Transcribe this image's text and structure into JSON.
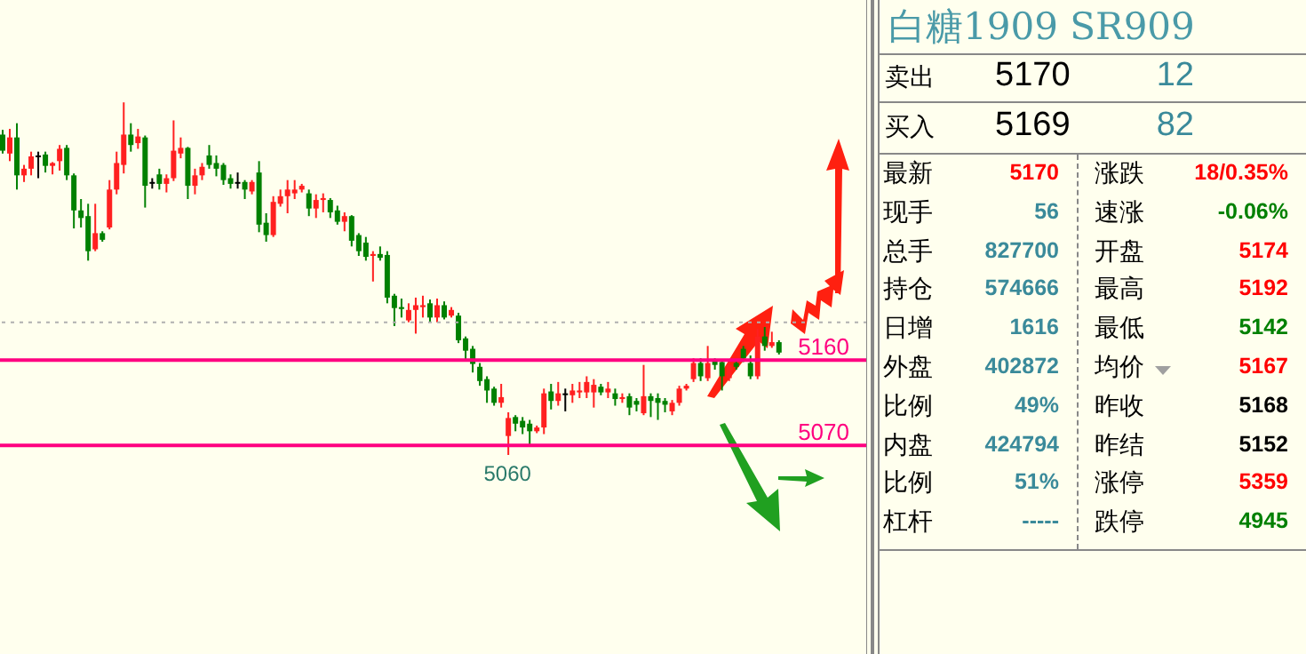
{
  "chart_data": [
    {
      "type": "candlestick",
      "categories": [
        null,
        null,
        null,
        null,
        null,
        null,
        null,
        null,
        null,
        null,
        null,
        null,
        null,
        null,
        null,
        null,
        null,
        null,
        null,
        null,
        null,
        null,
        null,
        null,
        null,
        null,
        null,
        null,
        null,
        null,
        null,
        null,
        null,
        null,
        null,
        null,
        null,
        null,
        null,
        null,
        null,
        null,
        null,
        null,
        null,
        null,
        null,
        null,
        null,
        null,
        null,
        null,
        null,
        null,
        null,
        null,
        null,
        null,
        null,
        null,
        null,
        null,
        null,
        null,
        null,
        null,
        null,
        null,
        null,
        null,
        null,
        null,
        null,
        null,
        null,
        null,
        null,
        null,
        null,
        null,
        null,
        null,
        null,
        null,
        null,
        null,
        null,
        null,
        null,
        null,
        null,
        null,
        null,
        null,
        null,
        null,
        null,
        null,
        null,
        null,
        null,
        null,
        null,
        null,
        null,
        null,
        null,
        null,
        null,
        null
      ],
      "ohlc": [
        [
          5398,
          5403,
          5378,
          5381
        ],
        [
          5378,
          5404,
          5370,
          5395
        ],
        [
          5395,
          5410,
          5340,
          5355
        ],
        [
          5355,
          5366,
          5348,
          5362
        ],
        [
          5362,
          5380,
          5355,
          5375
        ],
        [
          5376,
          5380,
          5352,
          5376
        ],
        [
          5377,
          5380,
          5358,
          5365
        ],
        [
          5365,
          5369,
          5356,
          5368
        ],
        [
          5370,
          5387,
          5360,
          5383
        ],
        [
          5384,
          5387,
          5350,
          5355
        ],
        [
          5355,
          5357,
          5299,
          5318
        ],
        [
          5318,
          5330,
          5300,
          5310
        ],
        [
          5312,
          5325,
          5265,
          5275
        ],
        [
          5277,
          5325,
          5275,
          5294
        ],
        [
          5294,
          5296,
          5285,
          5287
        ],
        [
          5300,
          5350,
          5298,
          5340
        ],
        [
          5340,
          5380,
          5335,
          5368
        ],
        [
          5366,
          5432,
          5357,
          5398
        ],
        [
          5398,
          5410,
          5380,
          5387
        ],
        [
          5389,
          5404,
          5383,
          5396
        ],
        [
          5395,
          5397,
          5321,
          5344
        ],
        [
          5348,
          5352,
          5341,
          5348
        ],
        [
          5356,
          5362,
          5340,
          5346
        ],
        [
          5346,
          5356,
          5337,
          5352
        ],
        [
          5352,
          5413,
          5349,
          5381
        ],
        [
          5378,
          5395,
          5373,
          5384
        ],
        [
          5384,
          5385,
          5330,
          5344
        ],
        [
          5344,
          5362,
          5335,
          5355
        ],
        [
          5355,
          5368,
          5350,
          5364
        ],
        [
          5376,
          5387,
          5362,
          5366
        ],
        [
          5368,
          5376,
          5354,
          5362
        ],
        [
          5366,
          5368,
          5345,
          5350
        ],
        [
          5352,
          5356,
          5341,
          5346
        ],
        [
          5348,
          5358,
          5341,
          5348
        ],
        [
          5348,
          5350,
          5330,
          5340
        ],
        [
          5338,
          5350,
          5335,
          5348
        ],
        [
          5358,
          5370,
          5295,
          5303
        ],
        [
          5305,
          5315,
          5285,
          5292
        ],
        [
          5292,
          5333,
          5290,
          5327
        ],
        [
          5325,
          5340,
          5322,
          5333
        ],
        [
          5333,
          5350,
          5315,
          5340
        ],
        [
          5336,
          5350,
          5330,
          5340
        ],
        [
          5340,
          5346,
          5337,
          5344
        ],
        [
          5336,
          5340,
          5312,
          5320
        ],
        [
          5320,
          5335,
          5310,
          5329
        ],
        [
          5329,
          5336,
          5316,
          5331
        ],
        [
          5329,
          5331,
          5310,
          5316
        ],
        [
          5318,
          5323,
          5303,
          5306
        ],
        [
          5306,
          5316,
          5296,
          5312
        ],
        [
          5312,
          5313,
          5280,
          5286
        ],
        [
          5292,
          5294,
          5270,
          5275
        ],
        [
          5284,
          5290,
          5265,
          5269
        ],
        [
          5270,
          5275,
          5243,
          5272
        ],
        [
          5272,
          5280,
          5265,
          5268
        ],
        [
          5271,
          5275,
          5220,
          5226
        ],
        [
          5228,
          5230,
          5196,
          5215
        ],
        [
          5216,
          5225,
          5205,
          5214
        ],
        [
          5202,
          5220,
          5200,
          5213
        ],
        [
          5213,
          5226,
          5188,
          5218
        ],
        [
          5216,
          5228,
          5205,
          5218
        ],
        [
          5220,
          5224,
          5200,
          5205
        ],
        [
          5205,
          5225,
          5200,
          5218
        ],
        [
          5218,
          5222,
          5203,
          5205
        ],
        [
          5207,
          5216,
          5205,
          5213
        ],
        [
          5207,
          5210,
          5178,
          5181
        ],
        [
          5183,
          5185,
          5160,
          5170
        ],
        [
          5172,
          5175,
          5147,
          5156
        ],
        [
          5153,
          5157,
          5133,
          5138
        ],
        [
          5140,
          5143,
          5115,
          5128
        ],
        [
          5130,
          5132,
          5112,
          5115
        ],
        [
          5115,
          5135,
          5110,
          5121
        ],
        [
          5080,
          5105,
          5060,
          5099
        ],
        [
          5100,
          5102,
          5085,
          5093
        ],
        [
          5096,
          5100,
          5082,
          5089
        ],
        [
          5093,
          5097,
          5070,
          5085
        ],
        [
          5085,
          5091,
          5083,
          5089
        ],
        [
          5089,
          5130,
          5082,
          5125
        ],
        [
          5127,
          5135,
          5108,
          5117
        ],
        [
          5117,
          5137,
          5112,
          5125
        ],
        [
          5125,
          5130,
          5106,
          5125
        ],
        [
          5123,
          5135,
          5115,
          5128
        ],
        [
          5126,
          5137,
          5120,
          5128
        ],
        [
          5126,
          5143,
          5120,
          5137
        ],
        [
          5126,
          5140,
          5110,
          5134
        ],
        [
          5132,
          5135,
          5123,
          5126
        ],
        [
          5126,
          5137,
          5120,
          5130
        ],
        [
          5125,
          5130,
          5112,
          5119
        ],
        [
          5119,
          5125,
          5115,
          5121
        ],
        [
          5122,
          5125,
          5102,
          5110
        ],
        [
          5117,
          5120,
          5106,
          5113
        ],
        [
          5104,
          5155,
          5102,
          5122
        ],
        [
          5122,
          5125,
          5100,
          5117
        ],
        [
          5120,
          5125,
          5097,
          5115
        ],
        [
          5117,
          5120,
          5105,
          5113
        ],
        [
          5106,
          5118,
          5102,
          5115
        ],
        [
          5115,
          5133,
          5112,
          5130
        ],
        [
          5130,
          5135,
          5128,
          5133
        ],
        [
          5140,
          5162,
          5137,
          5157
        ],
        [
          5157,
          5162,
          5138,
          5143
        ],
        [
          5141,
          5175,
          5138,
          5157
        ],
        [
          5159,
          5162,
          5150,
          5155
        ],
        [
          5158,
          5160,
          5128,
          5143
        ],
        [
          5141,
          5158,
          5138,
          5155
        ],
        [
          5157,
          5160,
          5150,
          5153
        ],
        [
          5172,
          5175,
          5158,
          5162
        ],
        [
          5157,
          5165,
          5140,
          5143
        ],
        [
          5143,
          5193,
          5140,
          5185
        ],
        [
          5185,
          5195,
          5170,
          5175
        ],
        [
          5175,
          5190,
          5173,
          5179
        ],
        [
          5179,
          5181,
          5166,
          5168
        ]
      ],
      "ylim": [
        4850,
        5540
      ],
      "yticks": [
        5070,
        5160
      ],
      "ref_lines": [
        {
          "axis": "y",
          "value": 5160,
          "color": "#ff0080"
        },
        {
          "axis": "y",
          "value": 5070,
          "color": "#ff0080"
        },
        {
          "axis": "y",
          "value": 5200,
          "color": "#b0b0b0",
          "line_style": "dotted"
        }
      ],
      "annotations": [
        {
          "text": "5060",
          "y": 5060
        }
      ]
    },
    {
      "type": "other",
      "title": "白糖1909 SR909",
      "annotations": [
        "卖出",
        "5170",
        "12",
        "买入",
        "5169",
        "82",
        "最新",
        "5170",
        "涨跌",
        "18/0.35%",
        "现手",
        "56",
        "速涨",
        "-0.06%",
        "总手",
        "827700",
        "开盘",
        "5174",
        "持仓",
        "574666",
        "最高",
        "5192",
        "日增",
        "1616",
        "最低",
        "5142",
        "外盘",
        "402872",
        "均价",
        "5167",
        "比例",
        "49%",
        "昨收",
        "5168",
        "内盘",
        "424794",
        "昨结",
        "5152",
        "比例",
        "51%",
        "涨停",
        "5359",
        "杠杆",
        "-----",
        "跌停",
        "4945"
      ]
    }
  ]
}
